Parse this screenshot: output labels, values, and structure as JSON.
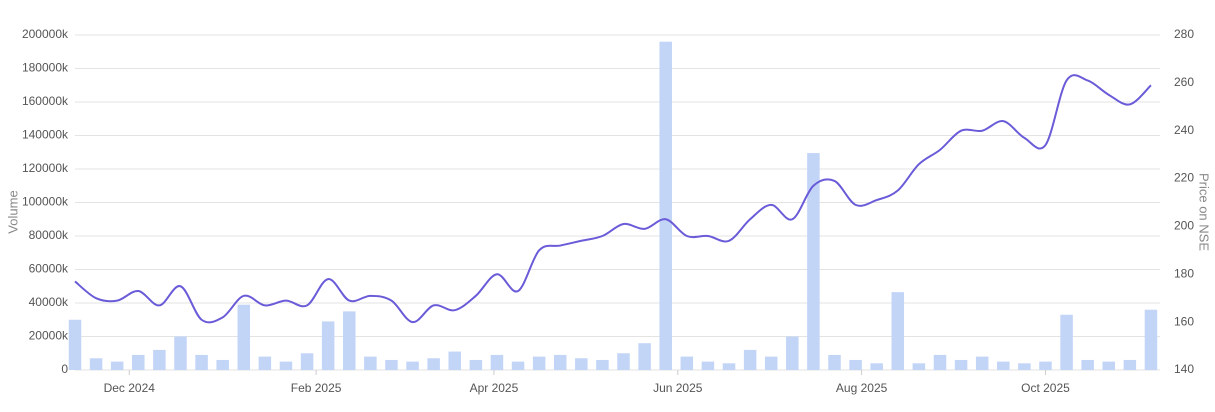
{
  "chart_data": {
    "type": "combo",
    "ylabel": "Volume",
    "y2label": "Price on NSE",
    "x": [
      "2024-11-13",
      "2024-11-20",
      "2024-11-27",
      "2024-12-04",
      "2024-12-11",
      "2024-12-18",
      "2024-12-25",
      "2025-01-01",
      "2025-01-08",
      "2025-01-15",
      "2025-01-22",
      "2025-01-29",
      "2025-02-05",
      "2025-02-12",
      "2025-02-19",
      "2025-02-26",
      "2025-03-05",
      "2025-03-12",
      "2025-03-19",
      "2025-03-26",
      "2025-04-02",
      "2025-04-09",
      "2025-04-16",
      "2025-04-23",
      "2025-04-30",
      "2025-05-07",
      "2025-05-14",
      "2025-05-21",
      "2025-05-28",
      "2025-06-04",
      "2025-06-11",
      "2025-06-18",
      "2025-06-25",
      "2025-07-02",
      "2025-07-09",
      "2025-07-16",
      "2025-07-23",
      "2025-07-30",
      "2025-08-06",
      "2025-08-13",
      "2025-08-20",
      "2025-08-27",
      "2025-09-03",
      "2025-09-10",
      "2025-09-17",
      "2025-09-24",
      "2025-10-01",
      "2025-10-08",
      "2025-10-15",
      "2025-10-22",
      "2025-10-29",
      "2025-11-05"
    ],
    "series": [
      {
        "type": "bar",
        "axis": "y",
        "color": "#c3d5f7",
        "values": [
          30000,
          7000,
          5000,
          9000,
          12000,
          20000,
          9000,
          6000,
          39000,
          8000,
          5000,
          10000,
          29000,
          35000,
          8000,
          6000,
          5000,
          7000,
          11000,
          6000,
          9000,
          5000,
          8000,
          9000,
          7000,
          6000,
          10000,
          16000,
          196000,
          8000,
          5000,
          4000,
          12000,
          8000,
          20000,
          129500,
          9000,
          6000,
          4000,
          46500,
          4000,
          9000,
          6000,
          8000,
          5000,
          4000,
          5000,
          33000,
          6000,
          5000,
          6000,
          36000
        ]
      },
      {
        "type": "line",
        "axis": "y2",
        "color": "#6a5bd8",
        "values": [
          177,
          170,
          169,
          173,
          167,
          175,
          161,
          162,
          171,
          167,
          169,
          167,
          178,
          169,
          171,
          169,
          160,
          167,
          165,
          171,
          180,
          173,
          190,
          192,
          194,
          196,
          201,
          199,
          203,
          196,
          196,
          194,
          203,
          209,
          203,
          217,
          219,
          209,
          211,
          215,
          226,
          232,
          240,
          240,
          244,
          237,
          234,
          261,
          261,
          255,
          251,
          259
        ]
      }
    ],
    "xlim": [
      "2024-11-13",
      "2025-11-08"
    ],
    "xticks": [
      {
        "value": "2024-12-01",
        "label": "Dec 2024"
      },
      {
        "value": "2025-02-01",
        "label": "Feb 2025"
      },
      {
        "value": "2025-04-01",
        "label": "Apr 2025"
      },
      {
        "value": "2025-06-01",
        "label": "Jun 2025"
      },
      {
        "value": "2025-08-01",
        "label": "Aug 2025"
      },
      {
        "value": "2025-10-01",
        "label": "Oct 2025"
      }
    ],
    "ylim": [
      0,
      200000
    ],
    "yticks": [
      0,
      {
        "value": 20000,
        "label": "20000k"
      },
      {
        "value": 40000,
        "label": "40000k"
      },
      {
        "value": 60000,
        "label": "60000k"
      },
      {
        "value": 80000,
        "label": "80000k"
      },
      {
        "value": 100000,
        "label": "100000k"
      },
      {
        "value": 120000,
        "label": "120000k"
      },
      {
        "value": 140000,
        "label": "140000k"
      },
      {
        "value": 160000,
        "label": "160000k"
      },
      {
        "value": 180000,
        "label": "180000k"
      },
      {
        "value": 200000,
        "label": "200000k"
      }
    ],
    "y2lim": [
      140,
      280
    ],
    "y2ticks": [
      140,
      160,
      180,
      200,
      220,
      240,
      260,
      280
    ],
    "grid": true
  }
}
